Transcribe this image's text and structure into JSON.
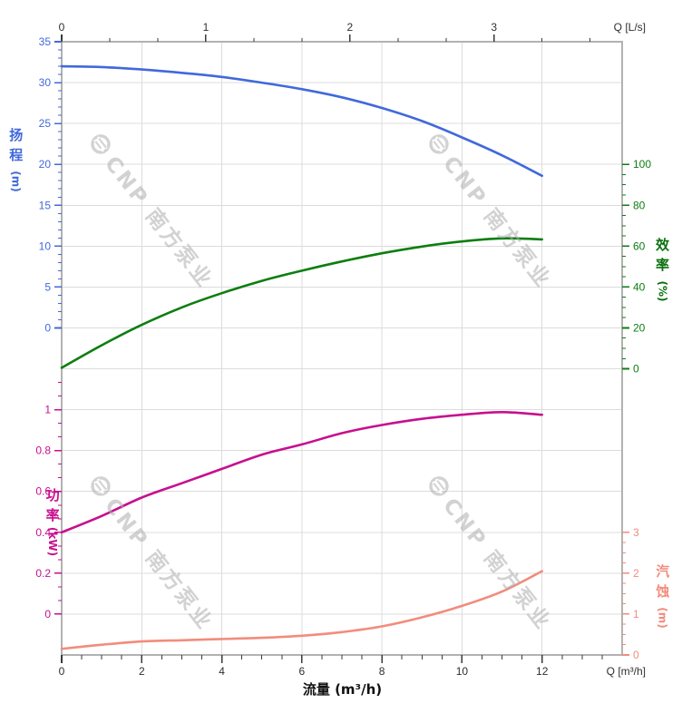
{
  "chart_data": {
    "type": "line",
    "title": "",
    "x_axis_bottom": {
      "label": "流量 (m³/h)",
      "corner_label": "Q [m³/h]",
      "min": 0,
      "max": 14,
      "major_ticks": [
        0,
        2,
        4,
        6,
        8,
        10,
        12
      ],
      "minor_step": 0.5,
      "minor_max": 13.5,
      "color": "#3a3a3a"
    },
    "x_axis_top": {
      "corner_label": "Q [L/s]",
      "min": 0,
      "max": 3.889,
      "major_ticks": [
        0,
        1,
        2,
        3
      ],
      "minor_step": 0.33333,
      "minor_max": 3.6667,
      "color": "#3a3a3a"
    },
    "y_axes": [
      {
        "id": "head",
        "title": "扬程",
        "unit": "(m)",
        "side": "left",
        "color": "#4169DB",
        "min": 0,
        "max": 35,
        "major_step": 5,
        "minor_step": 1,
        "major_labels": [
          "0",
          "5",
          "10",
          "15",
          "20",
          "25",
          "30",
          "35"
        ]
      },
      {
        "id": "efficiency",
        "title": "效率",
        "unit": "(%)",
        "side": "right",
        "color": "#0C7E10",
        "min": 0,
        "max": 100,
        "major_step": 20,
        "minor_step": 5,
        "major_labels": [
          "0",
          "20",
          "40",
          "60",
          "80",
          "100"
        ]
      },
      {
        "id": "power",
        "title": "功率",
        "unit": "(kW)",
        "side": "left",
        "color": "#C70F8E",
        "min": 0,
        "max": 1,
        "major_step": 0.2,
        "minor_step": 0.066667,
        "minor_extra": [
          1.0667,
          1.1333
        ],
        "major_labels": [
          "0",
          "0.2",
          "0.4",
          "0.6",
          "0.8",
          "1"
        ]
      },
      {
        "id": "npsh",
        "title": "汽蚀",
        "unit": "(m)",
        "side": "right",
        "color": "#F28C7C",
        "min": 0,
        "max": 3,
        "major_step": 1,
        "minor_step": 0.25,
        "major_labels": [
          "0",
          "1",
          "2",
          "3"
        ]
      }
    ],
    "series": [
      {
        "id": "head-curve",
        "name": "扬程",
        "axis": "head",
        "color": "#4169DB",
        "points": [
          [
            0,
            32.0
          ],
          [
            1,
            31.9
          ],
          [
            2,
            31.6
          ],
          [
            3,
            31.2
          ],
          [
            4,
            30.7
          ],
          [
            5,
            30.0
          ],
          [
            6,
            29.2
          ],
          [
            7,
            28.2
          ],
          [
            8,
            26.9
          ],
          [
            9,
            25.3
          ],
          [
            10,
            23.3
          ],
          [
            11,
            21.1
          ],
          [
            12,
            18.6
          ]
        ]
      },
      {
        "id": "efficiency-curve",
        "name": "效率",
        "axis": "efficiency",
        "color": "#0C7E10",
        "points": [
          [
            0,
            0.5
          ],
          [
            1,
            11.5
          ],
          [
            2,
            21.5
          ],
          [
            3,
            30.0
          ],
          [
            4,
            37.0
          ],
          [
            5,
            43.0
          ],
          [
            6,
            48.0
          ],
          [
            7,
            52.5
          ],
          [
            8,
            56.5
          ],
          [
            9,
            59.8
          ],
          [
            10,
            62.3
          ],
          [
            11,
            63.8
          ],
          [
            12,
            63.3
          ]
        ]
      },
      {
        "id": "power-curve",
        "name": "功率",
        "axis": "power",
        "color": "#C70F8E",
        "points": [
          [
            0,
            0.4
          ],
          [
            1,
            0.48
          ],
          [
            2,
            0.57
          ],
          [
            3,
            0.64
          ],
          [
            4,
            0.71
          ],
          [
            5,
            0.78
          ],
          [
            6,
            0.83
          ],
          [
            7,
            0.885
          ],
          [
            8,
            0.925
          ],
          [
            9,
            0.955
          ],
          [
            10,
            0.975
          ],
          [
            11,
            0.988
          ],
          [
            12,
            0.975
          ]
        ]
      },
      {
        "id": "npsh-curve",
        "name": "汽蚀",
        "axis": "npsh",
        "color": "#F28C7C",
        "points": [
          [
            0,
            0.15
          ],
          [
            1,
            0.25
          ],
          [
            2,
            0.33
          ],
          [
            3,
            0.36
          ],
          [
            4,
            0.39
          ],
          [
            5,
            0.42
          ],
          [
            6,
            0.47
          ],
          [
            7,
            0.56
          ],
          [
            8,
            0.7
          ],
          [
            9,
            0.92
          ],
          [
            10,
            1.2
          ],
          [
            11,
            1.55
          ],
          [
            12,
            2.05
          ]
        ]
      }
    ],
    "grid": {
      "on": true,
      "color": "#DCDCDC",
      "border_color": "#B2B2B2"
    }
  },
  "labels": {
    "flow_axis": "流量 (m³/h)",
    "q_ls": "Q [L/s]",
    "q_m3h": "Q [m³/h]",
    "head_title": "扬程",
    "head_unit": "(m)",
    "eff_title": "效率",
    "eff_unit": "(%)",
    "power_title": "功率",
    "power_unit": "(kW)",
    "npsh_title": "汽蚀",
    "npsh_unit": "(m)"
  },
  "watermark": {
    "text": "CNP 南方泵业"
  }
}
